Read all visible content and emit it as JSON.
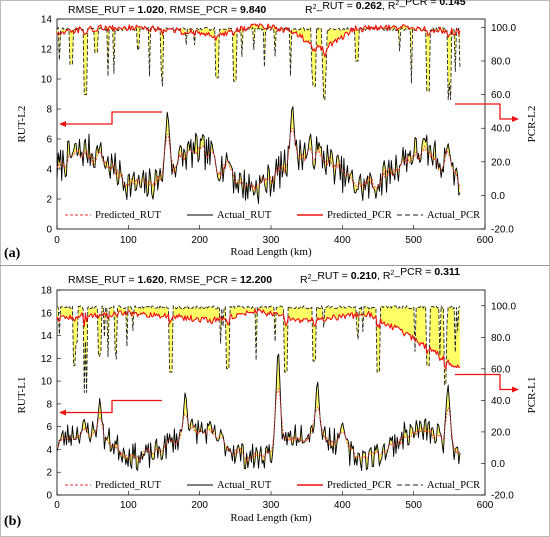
{
  "colors": {
    "predicted_rut": "#ff3333",
    "actual_rut": "#000000",
    "predicted_pcr": "#ee1111",
    "actual_pcr": "#222222",
    "fill": "#ffff55",
    "arrow": "#ee1111"
  },
  "chart_data": [
    {
      "type": "line",
      "panel_label": "(a)",
      "stats": {
        "rmse_rut_label": "RMSE_RUT = ",
        "rmse_rut_value": "1.020",
        "rmse_pcr_label": ", RMSE_PCR = ",
        "rmse_pcr_value": "9.840",
        "r2_rut_label": "R",
        "r2_rut_suffix": "_RUT = ",
        "r2_rut_value": "0.262",
        "r2_pcr_label": "R",
        "r2_pcr_suffix": "_PCR = ",
        "r2_pcr_value": "0.145"
      },
      "xlabel": "Road Length (km)",
      "ylabel_left": "RUT-L2",
      "ylabel_right": "PCR-L2",
      "xlim": [
        0,
        600
      ],
      "ylim_left": [
        0,
        14
      ],
      "ylim_right": [
        -20,
        105
      ],
      "x_ticks": [
        "0",
        "100",
        "200",
        "300",
        "400",
        "500",
        "600"
      ],
      "y_left_ticks": [
        "0",
        "2",
        "4",
        "6",
        "8",
        "10",
        "12",
        "14"
      ],
      "y_right_ticks": [
        "-20.0",
        "0.0",
        "20.0",
        "40.0",
        "60.0",
        "80.0",
        "100.0"
      ],
      "legend": [
        "Predicted_RUT",
        "Actual_RUT",
        "Predicted_PCR",
        "Actual_PCR"
      ],
      "series_summary": {
        "actual_rut": {
          "x_range": [
            0,
            565
          ],
          "typical": 4,
          "peaks": [
            [
              60,
              5.5
            ],
            [
              155,
              8.1
            ],
            [
              240,
              4.6
            ],
            [
              330,
              8.7
            ],
            [
              548,
              5.8
            ]
          ],
          "min": 1.7
        },
        "predicted_rut": {
          "x_range": [
            0,
            565
          ],
          "typical": 3.8
        },
        "actual_pcr": {
          "x_range": [
            0,
            565
          ],
          "typical": 100,
          "dips": [
            [
              20,
              78
            ],
            [
              40,
              60
            ],
            [
              55,
              85
            ],
            [
              225,
              70
            ],
            [
              250,
              68
            ],
            [
              360,
              65
            ],
            [
              375,
              57
            ],
            [
              420,
              80
            ],
            [
              520,
              62
            ],
            [
              550,
              57
            ]
          ]
        },
        "predicted_pcr": {
          "x_range": [
            0,
            565
          ],
          "typical": 97,
          "peak": [
            285,
            102
          ],
          "min": [
            375,
            87
          ]
        }
      },
      "annotations": [
        "arrow to left axis (RUT)",
        "arrow to right axis (PCR)"
      ]
    },
    {
      "type": "line",
      "panel_label": "(b)",
      "stats": {
        "rmse_rut_label": "RMSE_RUT = ",
        "rmse_rut_value": "1.620",
        "rmse_pcr_label": ", RMSE_PCR = ",
        "rmse_pcr_value": "12.200",
        "r2_rut_label": "R",
        "r2_rut_suffix": "_RUT = ",
        "r2_rut_value": "0.210",
        "r2_pcr_label": "R",
        "r2_pcr_suffix": "_PCR = ",
        "r2_pcr_value": "0.311"
      },
      "xlabel": "Road Length (km)",
      "ylabel_left": "RUT-L1",
      "ylabel_right": "PCR-L1",
      "xlim": [
        0,
        600
      ],
      "ylim_left": [
        0,
        18
      ],
      "ylim_right": [
        -20,
        110
      ],
      "x_ticks": [
        "0",
        "100",
        "200",
        "300",
        "400",
        "500",
        "600"
      ],
      "y_left_ticks": [
        "0",
        "2",
        "4",
        "6",
        "8",
        "10",
        "12",
        "14",
        "16",
        "18"
      ],
      "y_right_ticks": [
        "-20.0",
        "0.0",
        "20.0",
        "40.0",
        "60.0",
        "80.0",
        "100.0"
      ],
      "legend": [
        "Predicted_RUT",
        "Actual_RUT",
        "Predicted_PCR",
        "Actual_PCR"
      ],
      "series_summary": {
        "actual_rut": {
          "x_range": [
            0,
            565
          ],
          "typical": 4.5,
          "peaks": [
            [
              60,
              8.6
            ],
            [
              180,
              9.4
            ],
            [
              310,
              13.5
            ],
            [
              365,
              10.5
            ],
            [
              400,
              6.5
            ],
            [
              548,
              10
            ]
          ],
          "min": 1.5
        },
        "predicted_rut": {
          "x_range": [
            0,
            565
          ],
          "typical": 4.2
        },
        "actual_pcr": {
          "x_range": [
            0,
            565
          ],
          "typical": 100,
          "dips": [
            [
              25,
              62
            ],
            [
              40,
              45
            ],
            [
              60,
              68
            ],
            [
              160,
              58
            ],
            [
              240,
              60
            ],
            [
              320,
              58
            ],
            [
              360,
              65
            ],
            [
              450,
              58
            ],
            [
              520,
              62
            ],
            [
              545,
              50
            ]
          ]
        },
        "predicted_pcr": {
          "x_range": [
            0,
            565
          ],
          "typical": 92,
          "peak": [
            280,
            102
          ],
          "min": [
            565,
            60
          ]
        }
      },
      "annotations": [
        "arrow to left axis (RUT)",
        "arrow to right axis (PCR)"
      ]
    }
  ]
}
